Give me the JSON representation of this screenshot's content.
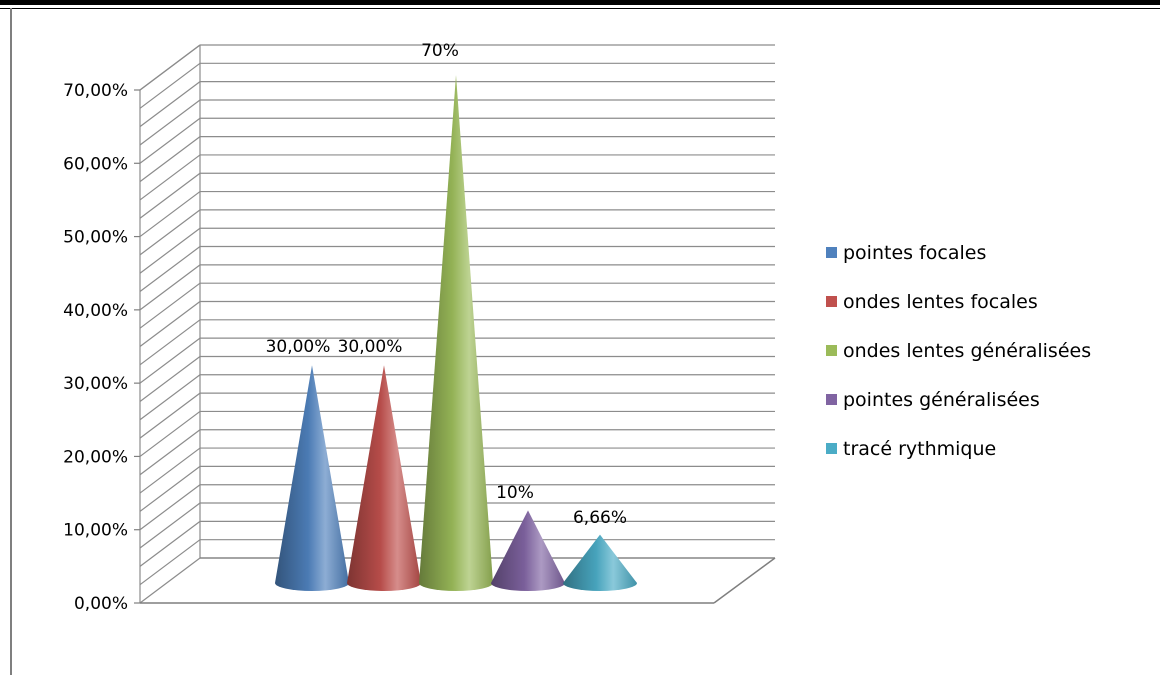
{
  "chart_data": {
    "type": "bar",
    "subtype": "3d-cone",
    "categories": [
      "pointes focales",
      "ondes lentes focales",
      "ondes lentes généralisées",
      "pointes généralisées",
      "tracé rythmique"
    ],
    "values": [
      30.0,
      30.0,
      70.0,
      10.0,
      6.66
    ],
    "data_labels": [
      "30,00%",
      "30,00%",
      "70%",
      "10%",
      "6,66%"
    ],
    "colors": [
      "#4f81bd",
      "#c0504d",
      "#9bbb59",
      "#8064a2",
      "#4bacc6"
    ],
    "legend": {
      "placement": "right",
      "entries": [
        "pointes focales",
        " ondes lentes focales",
        " ondes lentes généralisées",
        "pointes généralisées",
        "tracé rythmique"
      ]
    },
    "y_ticks": [
      "0,00%",
      "10,00%",
      "20,00%",
      "30,00%",
      "40,00%",
      "50,00%",
      "60,00%",
      "70,00%"
    ],
    "ylim": [
      0,
      70
    ],
    "grid": true
  }
}
